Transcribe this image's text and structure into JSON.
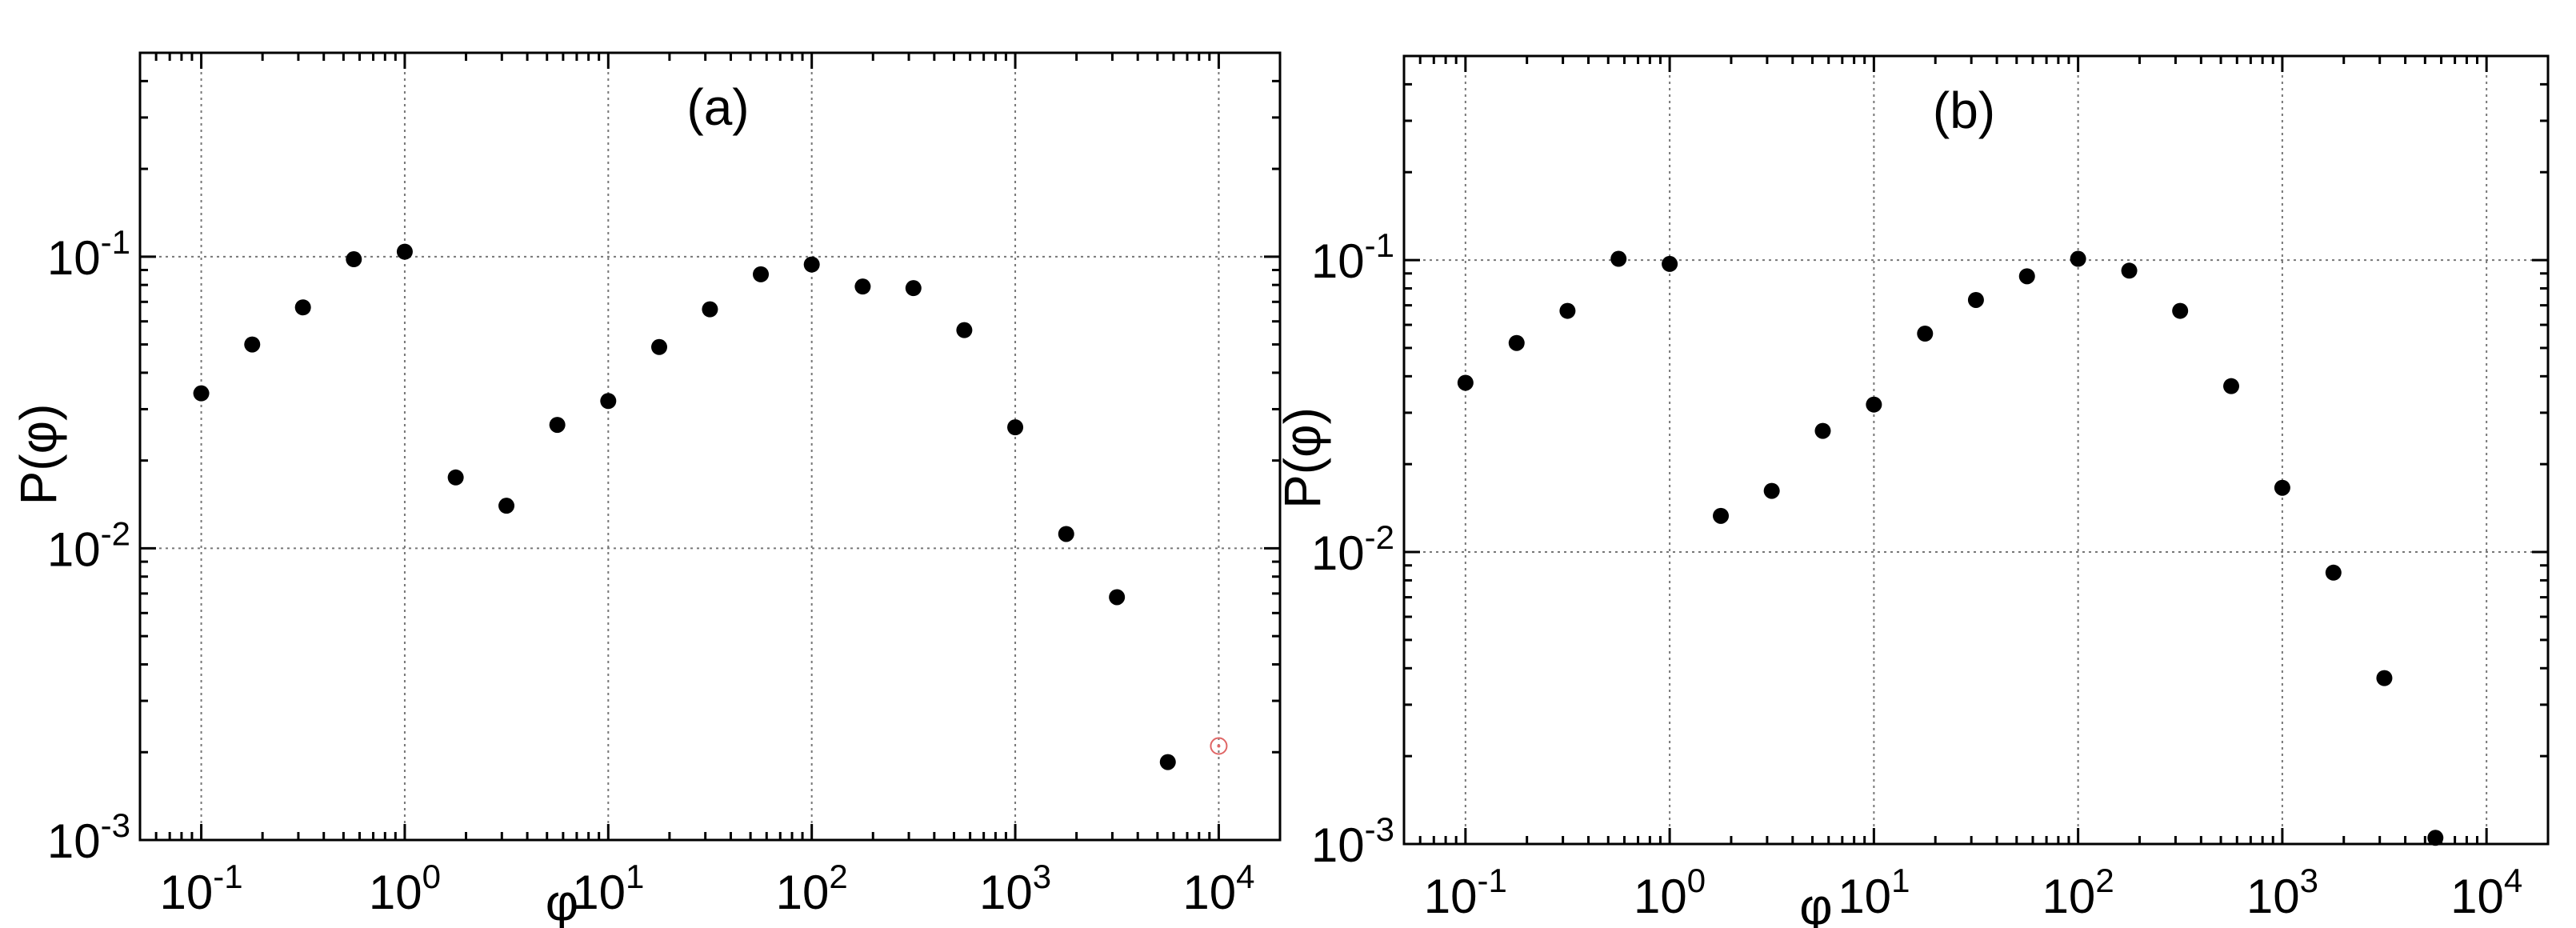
{
  "chart_data": [
    {
      "type": "scatter",
      "title": "(a)",
      "xlabel": "φ",
      "ylabel": "P(φ)",
      "xscale": "log",
      "yscale": "log",
      "xlim": [
        0.05,
        20000
      ],
      "ylim": [
        0.001,
        0.5
      ],
      "grid": true,
      "x_ticks": [
        {
          "value": 0.1,
          "base": "10",
          "exp": "-1"
        },
        {
          "value": 1,
          "base": "10",
          "exp": "0"
        },
        {
          "value": 10,
          "base": "10",
          "exp": "1"
        },
        {
          "value": 100,
          "base": "10",
          "exp": "2"
        },
        {
          "value": 1000,
          "base": "10",
          "exp": "3"
        },
        {
          "value": 10000,
          "base": "10",
          "exp": "4"
        }
      ],
      "y_ticks": [
        {
          "value": 0.001,
          "base": "10",
          "exp": "-3"
        },
        {
          "value": 0.01,
          "base": "10",
          "exp": "-2"
        },
        {
          "value": 0.1,
          "base": "10",
          "exp": "-1"
        }
      ],
      "series": [
        {
          "color": "#000000",
          "marker": "filled-circle",
          "x": [
            0.1,
            0.178,
            0.316,
            0.562,
            1.0,
            1.78,
            3.16,
            5.62,
            10,
            17.8,
            31.6,
            56.2,
            100,
            178,
            316,
            562,
            1000,
            1780,
            3160,
            5620
          ],
          "y": [
            0.034,
            0.05,
            0.067,
            0.098,
            0.104,
            0.0175,
            0.014,
            0.0265,
            0.032,
            0.049,
            0.066,
            0.087,
            0.094,
            0.079,
            0.078,
            0.056,
            0.026,
            0.0112,
            0.0068,
            0.00185
          ]
        },
        {
          "color": "#e06666",
          "marker": "open-circle",
          "x": [
            10000
          ],
          "y": [
            0.0021
          ]
        }
      ]
    },
    {
      "type": "scatter",
      "title": "(b)",
      "xlabel": "φ",
      "ylabel": "P(φ)",
      "xscale": "log",
      "yscale": "log",
      "xlim": [
        0.05,
        20000
      ],
      "ylim": [
        0.001,
        0.5
      ],
      "grid": true,
      "x_ticks": [
        {
          "value": 0.1,
          "base": "10",
          "exp": "-1"
        },
        {
          "value": 1,
          "base": "10",
          "exp": "0"
        },
        {
          "value": 10,
          "base": "10",
          "exp": "1"
        },
        {
          "value": 100,
          "base": "10",
          "exp": "2"
        },
        {
          "value": 1000,
          "base": "10",
          "exp": "3"
        },
        {
          "value": 10000,
          "base": "10",
          "exp": "4"
        }
      ],
      "y_ticks": [
        {
          "value": 0.001,
          "base": "10",
          "exp": "-3"
        },
        {
          "value": 0.01,
          "base": "10",
          "exp": "-2"
        },
        {
          "value": 0.1,
          "base": "10",
          "exp": "-1"
        }
      ],
      "series": [
        {
          "color": "#000000",
          "marker": "filled-circle",
          "x": [
            0.1,
            0.178,
            0.316,
            0.562,
            1.0,
            1.78,
            3.16,
            5.62,
            10,
            17.8,
            31.6,
            56.2,
            100,
            178,
            316,
            562,
            1000,
            1780,
            3160,
            5620
          ],
          "y": [
            0.038,
            0.052,
            0.067,
            0.101,
            0.097,
            0.0133,
            0.0162,
            0.026,
            0.032,
            0.056,
            0.073,
            0.088,
            0.101,
            0.092,
            0.067,
            0.037,
            0.0166,
            0.0085,
            0.0037,
            0.00105
          ]
        }
      ]
    }
  ]
}
